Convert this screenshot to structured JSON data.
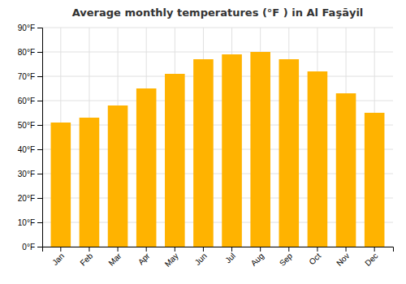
{
  "chart_data": {
    "type": "bar",
    "title": "Average monthly temperatures (°F ) in Al Faşāyil",
    "categories": [
      "Jan",
      "Feb",
      "Mar",
      "Apr",
      "May",
      "Jun",
      "Jul",
      "Aug",
      "Sep",
      "Oct",
      "Nov",
      "Dec"
    ],
    "values": [
      51,
      53,
      58,
      65,
      71,
      77,
      79,
      80,
      77,
      72,
      63,
      55
    ],
    "color": "#FFB300",
    "ylim": [
      0,
      90
    ],
    "yticks": [
      {
        "value": 0,
        "label": "0°F"
      },
      {
        "value": 10,
        "label": "10°F"
      },
      {
        "value": 20,
        "label": "20°F"
      },
      {
        "value": 30,
        "label": "30°F"
      },
      {
        "value": 40,
        "label": "40°F"
      },
      {
        "value": 50,
        "label": "50°F"
      },
      {
        "value": 60,
        "label": "60°F"
      },
      {
        "value": 70,
        "label": "70°F"
      },
      {
        "value": 80,
        "label": "80°F"
      },
      {
        "value": 90,
        "label": "90°F"
      }
    ],
    "grid": true
  }
}
